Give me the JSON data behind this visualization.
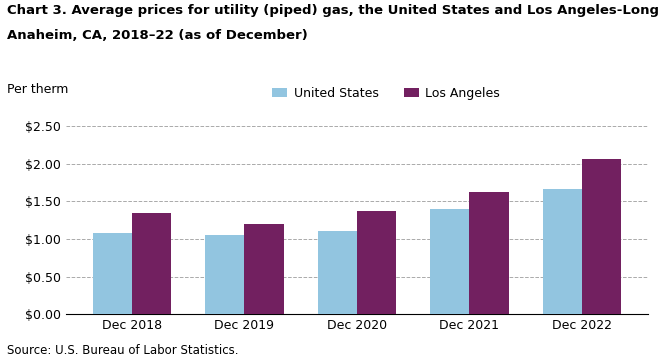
{
  "title_line1": "Chart 3. Average prices for utility (piped) gas, the United States and Los Angeles-Long Beach-",
  "title_line2": "Anaheim, CA, 2018–22 (as of December)",
  "ylabel": "Per therm",
  "source": "Source: U.S. Bureau of Labor Statistics.",
  "categories": [
    "Dec 2018",
    "Dec 2019",
    "Dec 2020",
    "Dec 2021",
    "Dec 2022"
  ],
  "us_values": [
    1.08,
    1.05,
    1.1,
    1.4,
    1.67
  ],
  "la_values": [
    1.35,
    1.2,
    1.37,
    1.62,
    2.06
  ],
  "us_color": "#92C5E0",
  "la_color": "#722060",
  "legend_labels": [
    "United States",
    "Los Angeles"
  ],
  "ylim": [
    0,
    2.5
  ],
  "yticks": [
    0.0,
    0.5,
    1.0,
    1.5,
    2.0,
    2.5
  ],
  "title_fontsize": 9.5,
  "axis_fontsize": 9,
  "tick_fontsize": 9,
  "bar_width": 0.35,
  "grid_color": "#aaaaaa",
  "background_color": "#ffffff"
}
